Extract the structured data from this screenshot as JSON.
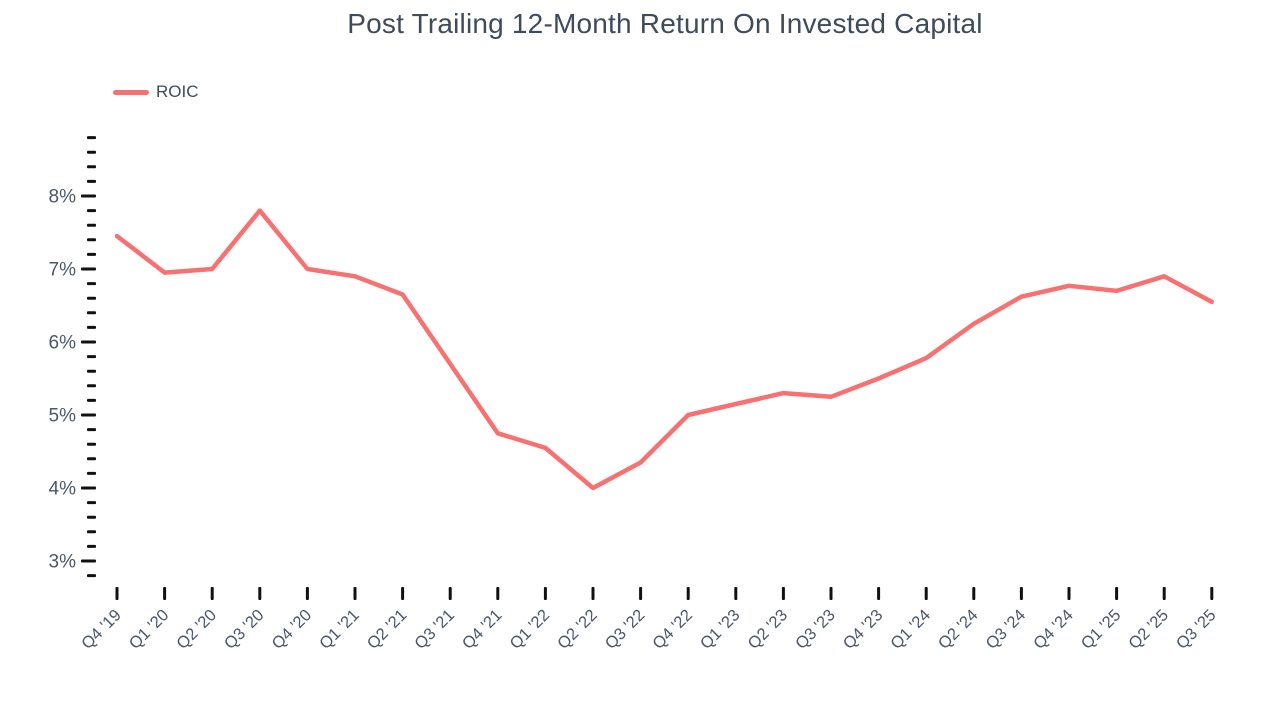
{
  "title": "Post Trailing 12-Month Return On Invested Capital",
  "legend": [
    {
      "label": "ROIC",
      "color": "#F87171"
    }
  ],
  "colors": {
    "line": "#F87171",
    "title_text": "#3E4B5B",
    "axis_text": "#4A5868",
    "tick": "#111111",
    "background": "#FFFFFF"
  },
  "chart_data": {
    "type": "line",
    "title": "Post Trailing 12-Month Return On Invested Capital",
    "categories": [
      "Q4 '19",
      "Q1 '20",
      "Q2 '20",
      "Q3 '20",
      "Q4 '20",
      "Q1 '21",
      "Q2 '21",
      "Q3 '21",
      "Q4 '21",
      "Q1 '22",
      "Q2 '22",
      "Q3 '22",
      "Q4 '22",
      "Q1 '23",
      "Q2 '23",
      "Q3 '23",
      "Q4 '23",
      "Q1 '24",
      "Q2 '24",
      "Q3 '24",
      "Q4 '24",
      "Q1 '25",
      "Q2 '25",
      "Q3 '25"
    ],
    "series": [
      {
        "name": "ROIC",
        "color": "#F87171",
        "values": [
          7.45,
          6.95,
          7.0,
          7.8,
          7.0,
          6.9,
          6.65,
          5.7,
          4.75,
          4.55,
          4.0,
          4.35,
          5.0,
          5.15,
          5.3,
          5.25,
          5.5,
          5.78,
          6.25,
          6.62,
          6.77,
          6.7,
          6.9,
          6.55
        ]
      }
    ],
    "y_axis": {
      "min": 2.8,
      "max": 8.8,
      "minor_step": 0.2,
      "major_step": 1.0,
      "unit": "%",
      "major_labels": [
        "3%",
        "4%",
        "5%",
        "6%",
        "7%",
        "8%"
      ]
    },
    "x_axis": {
      "label_rotation_deg": -45
    },
    "grid": false,
    "legend_position": "top-left"
  }
}
